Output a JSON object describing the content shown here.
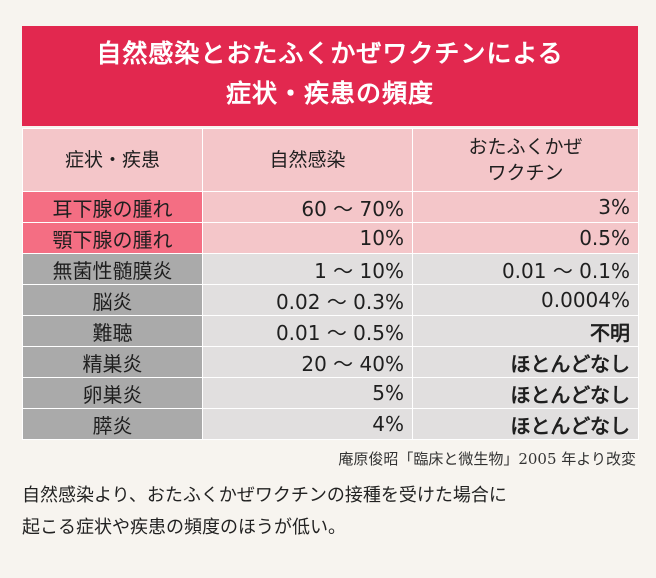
{
  "title": {
    "line1": "自然感染とおたふくかぜワクチンによる",
    "line2": "症状・疾患の頻度"
  },
  "table": {
    "headers": {
      "symptom": "症状・疾患",
      "natural": "自然感染",
      "vaccine": "おたふくかぜ ワクチン"
    },
    "rows": [
      {
        "name": "耳下腺の腫れ",
        "natural": "60 〜 70%",
        "vaccine": "3%"
      },
      {
        "name": "顎下腺の腫れ",
        "natural": "10%",
        "vaccine": "0.5%"
      },
      {
        "name": "無菌性髄膜炎",
        "natural": "1 〜 10%",
        "vaccine": "0.01 〜 0.1%"
      },
      {
        "name": "脳炎",
        "natural": "0.02 〜 0.3%",
        "vaccine": "0.0004%"
      },
      {
        "name": "難聴",
        "natural": "0.01 〜 0.5%",
        "vaccine": "不明"
      },
      {
        "name": "精巣炎",
        "natural": "20 〜 40%",
        "vaccine": "ほとんどなし"
      },
      {
        "name": "卵巣炎",
        "natural": "5%",
        "vaccine": "ほとんどなし"
      },
      {
        "name": "膵炎",
        "natural": "4%",
        "vaccine": "ほとんどなし"
      }
    ]
  },
  "source": "庵原俊昭「臨床と微生物」2005 年より改変",
  "note": {
    "line1": "自然感染より、おたふくかぜワクチンの接種を受けた場合に",
    "line2": "起こる症状や疾患の頻度のほうが低い。"
  },
  "colors": {
    "title_band": "#e2284f",
    "header_fill": "#f4c6c9",
    "pink_label": "#f46e83",
    "pink_value": "#f4c6c9",
    "gray_label": "#aaaaaa",
    "gray_value": "#e1dfdf"
  }
}
